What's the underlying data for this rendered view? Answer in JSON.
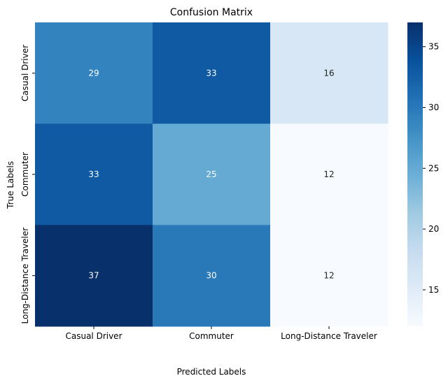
{
  "chart_data": {
    "type": "heatmap",
    "title": "Confusion Matrix",
    "xlabel": "Predicted Labels",
    "ylabel": "True Labels",
    "x_categories": [
      "Casual Driver",
      "Commuter",
      "Long-Distance Traveler"
    ],
    "y_categories": [
      "Casual Driver",
      "Commuter",
      "Long-Distance Traveler"
    ],
    "values": [
      [
        29,
        33,
        16
      ],
      [
        33,
        25,
        12
      ],
      [
        37,
        30,
        12
      ]
    ],
    "colormap": "Blues",
    "color_range": [
      12,
      37
    ],
    "colorbar_ticks": [
      15,
      20,
      25,
      30,
      35
    ],
    "cell_label_color_light": "#ffffff",
    "grid": false
  }
}
